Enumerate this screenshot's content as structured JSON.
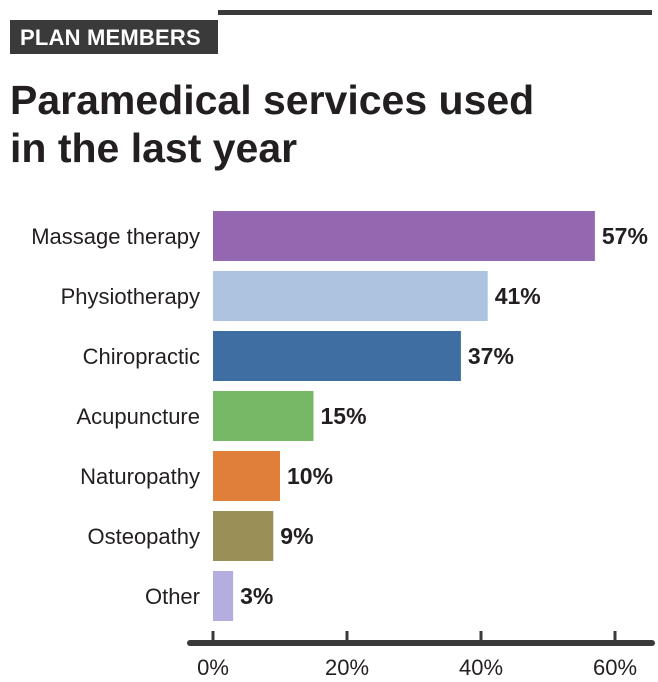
{
  "header": {
    "tag": "PLAN MEMBERS"
  },
  "chart_data": {
    "type": "bar",
    "orientation": "horizontal",
    "title": "Paramedical services used in the last year",
    "title_lines": [
      "Paramedical services used",
      "in the last year"
    ],
    "categories": [
      "Massage therapy",
      "Physiotherapy",
      "Chiropractic",
      "Acupuncture",
      "Naturopathy",
      "Osteopathy",
      "Other"
    ],
    "values": [
      57,
      41,
      37,
      15,
      10,
      9,
      3
    ],
    "value_labels": [
      "57%",
      "41%",
      "37%",
      "15%",
      "10%",
      "9%",
      "3%"
    ],
    "colors": [
      "#9467b0",
      "#adc3e0",
      "#3f6ea3",
      "#76b865",
      "#e07f3a",
      "#9b8f58",
      "#b4aee0"
    ],
    "xlim": [
      0,
      60
    ],
    "xticks": [
      0,
      20,
      40,
      60
    ],
    "xtick_labels": [
      "0%",
      "20%",
      "40%",
      "60%"
    ],
    "xlabel": "",
    "ylabel": "",
    "grid": false,
    "legend": "none"
  }
}
